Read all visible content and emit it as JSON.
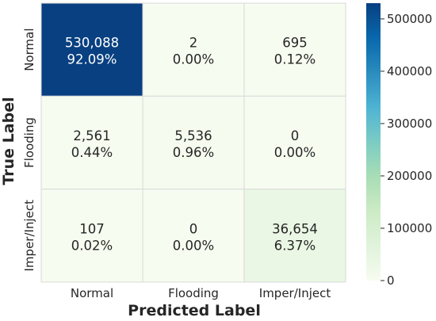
{
  "chart_data": {
    "type": "heatmap",
    "xlabel": "Predicted Label",
    "ylabel": "True Label",
    "x_categories": [
      "Normal",
      "Flooding",
      "Imper/Inject"
    ],
    "y_categories": [
      "Normal",
      "Flooding",
      "Imper/Inject"
    ],
    "values": [
      [
        530088,
        2,
        695
      ],
      [
        2561,
        5536,
        0
      ],
      [
        107,
        0,
        36654
      ]
    ],
    "cell_labels": [
      [
        [
          "530,088",
          "92.09%"
        ],
        [
          "2",
          "0.00%"
        ],
        [
          "695",
          "0.12%"
        ]
      ],
      [
        [
          "2,561",
          "0.44%"
        ],
        [
          "5,536",
          "0.96%"
        ],
        [
          "0",
          "0.00%"
        ]
      ],
      [
        [
          "107",
          "0.02%"
        ],
        [
          "0",
          "0.00%"
        ],
        [
          "36,654",
          "6.37%"
        ]
      ]
    ],
    "colorbar": {
      "min": 0,
      "max": 530088,
      "ticks": [
        0,
        100000,
        200000,
        300000,
        400000,
        500000
      ],
      "tick_labels": [
        "0",
        "100000",
        "200000",
        "300000",
        "400000",
        "500000"
      ],
      "colormap": "GnBu",
      "colors": [
        "#f7fcf0",
        "#e0f3db",
        "#ccebc5",
        "#a8ddb5",
        "#7bccc4",
        "#4eb3d3",
        "#2b8cbe",
        "#0868ac",
        "#084081"
      ]
    },
    "grid_line_color": "#d9d9d9"
  }
}
